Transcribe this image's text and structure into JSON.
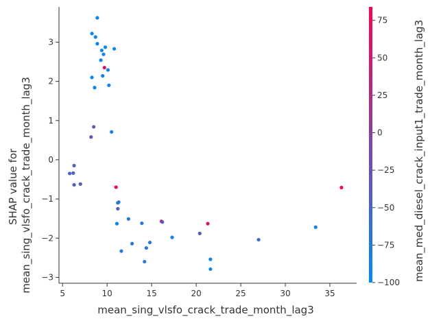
{
  "chart_data": {
    "type": "scatter",
    "xlabel": "mean_sing_vlsfo_crack_trade_month_lag3",
    "ylabel_lines": [
      "SHAP value for",
      "mean_sing_vlsfo_crack_trade_month_lag3"
    ],
    "xlim": [
      4.6,
      38.0
    ],
    "ylim": [
      -3.15,
      3.9
    ],
    "xticks": [
      5,
      10,
      15,
      20,
      25,
      30,
      35
    ],
    "yticks": [
      -3,
      -2,
      -1,
      0,
      1,
      2,
      3
    ],
    "colorbar": {
      "label": "mean_med_diesel_crack_input1_trade_month_lag3",
      "range": [
        -100,
        84
      ],
      "ticks": [
        -100,
        -75,
        -50,
        -25,
        0,
        25,
        50,
        75
      ],
      "colors": [
        "#008afb",
        "#ff0052"
      ]
    },
    "points": [
      {
        "x": 8.9,
        "y": 3.62,
        "c": -95
      },
      {
        "x": 8.3,
        "y": 3.22,
        "c": -95
      },
      {
        "x": 8.7,
        "y": 3.13,
        "c": -95
      },
      {
        "x": 8.9,
        "y": 2.96,
        "c": -95
      },
      {
        "x": 9.8,
        "y": 2.87,
        "c": -95
      },
      {
        "x": 10.8,
        "y": 2.83,
        "c": -95
      },
      {
        "x": 9.4,
        "y": 2.79,
        "c": -95
      },
      {
        "x": 9.6,
        "y": 2.69,
        "c": -95
      },
      {
        "x": 9.3,
        "y": 2.54,
        "c": -95
      },
      {
        "x": 9.7,
        "y": 2.35,
        "c": 55
      },
      {
        "x": 10.1,
        "y": 2.29,
        "c": -95
      },
      {
        "x": 9.5,
        "y": 2.14,
        "c": -95
      },
      {
        "x": 8.3,
        "y": 2.1,
        "c": -95
      },
      {
        "x": 10.2,
        "y": 1.9,
        "c": -95
      },
      {
        "x": 8.6,
        "y": 1.84,
        "c": -95
      },
      {
        "x": 8.5,
        "y": 0.84,
        "c": -30
      },
      {
        "x": 10.5,
        "y": 0.71,
        "c": -95
      },
      {
        "x": 8.2,
        "y": 0.58,
        "c": -30
      },
      {
        "x": 6.3,
        "y": -0.15,
        "c": -45
      },
      {
        "x": 5.8,
        "y": -0.35,
        "c": -45
      },
      {
        "x": 6.2,
        "y": -0.34,
        "c": -45
      },
      {
        "x": 6.3,
        "y": -0.64,
        "c": -45
      },
      {
        "x": 7.0,
        "y": -0.62,
        "c": -45
      },
      {
        "x": 11.0,
        "y": -0.7,
        "c": 80
      },
      {
        "x": 11.3,
        "y": -1.08,
        "c": -75
      },
      {
        "x": 11.2,
        "y": -1.1,
        "c": -75
      },
      {
        "x": 11.2,
        "y": -1.25,
        "c": -40
      },
      {
        "x": 12.4,
        "y": -1.51,
        "c": -75
      },
      {
        "x": 16.1,
        "y": -1.57,
        "c": 60
      },
      {
        "x": 16.2,
        "y": -1.59,
        "c": -40
      },
      {
        "x": 11.1,
        "y": -1.63,
        "c": -95
      },
      {
        "x": 13.9,
        "y": -1.62,
        "c": -75
      },
      {
        "x": 21.3,
        "y": -1.63,
        "c": 60
      },
      {
        "x": 33.4,
        "y": -1.72,
        "c": -85
      },
      {
        "x": 20.4,
        "y": -1.88,
        "c": -35
      },
      {
        "x": 17.3,
        "y": -1.98,
        "c": -90
      },
      {
        "x": 27.0,
        "y": -2.04,
        "c": -60
      },
      {
        "x": 14.8,
        "y": -2.11,
        "c": -75
      },
      {
        "x": 12.8,
        "y": -2.14,
        "c": -75
      },
      {
        "x": 14.4,
        "y": -2.25,
        "c": -75
      },
      {
        "x": 11.6,
        "y": -2.33,
        "c": -85
      },
      {
        "x": 21.6,
        "y": -2.54,
        "c": -95
      },
      {
        "x": 14.2,
        "y": -2.6,
        "c": -75
      },
      {
        "x": 21.6,
        "y": -2.79,
        "c": -95
      },
      {
        "x": 36.3,
        "y": -0.71,
        "c": 80
      }
    ]
  }
}
